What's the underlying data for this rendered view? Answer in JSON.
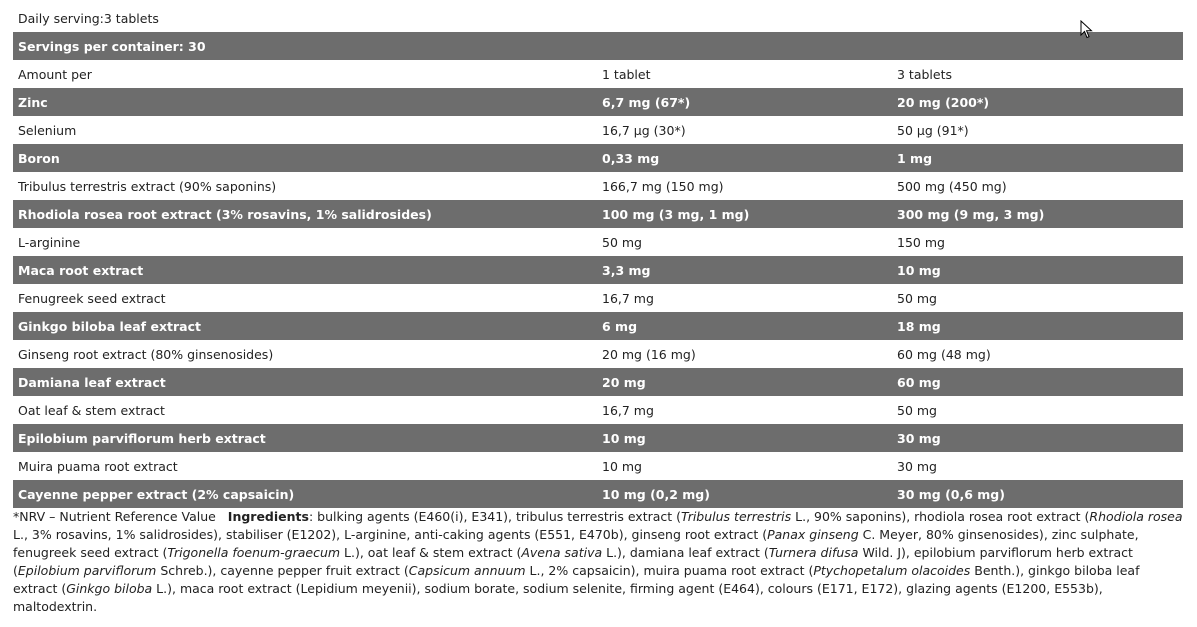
{
  "rows": [
    {
      "cells": [
        "Daily serving:3 tablets",
        "",
        ""
      ],
      "dark": false
    },
    {
      "cells": [
        "Servings per container: 30",
        "",
        ""
      ],
      "dark": true
    },
    {
      "cells": [
        "Amount per",
        "1 tablet",
        "3 tablets"
      ],
      "dark": false
    },
    {
      "cells": [
        "Zinc",
        "6,7 mg (67*)",
        "20 mg (200*)"
      ],
      "dark": true
    },
    {
      "cells": [
        "Selenium",
        "16,7 µg (30*)",
        "50 µg (91*)"
      ],
      "dark": false
    },
    {
      "cells": [
        "Boron",
        "0,33 mg",
        "1 mg"
      ],
      "dark": true
    },
    {
      "cells": [
        "Tribulus terrestris extract (90% saponins)",
        "166,7 mg (150 mg)",
        "500 mg (450 mg)"
      ],
      "dark": false
    },
    {
      "cells": [
        "Rhodiola rosea root extract (3% rosavins, 1% salidrosides)",
        "100 mg (3 mg, 1 mg)",
        "300 mg (9 mg, 3 mg)"
      ],
      "dark": true
    },
    {
      "cells": [
        "L-arginine",
        "50 mg",
        "150 mg"
      ],
      "dark": false
    },
    {
      "cells": [
        "Maca root extract",
        "3,3 mg",
        "10 mg"
      ],
      "dark": true
    },
    {
      "cells": [
        "Fenugreek seed extract",
        "16,7 mg",
        "50 mg"
      ],
      "dark": false
    },
    {
      "cells": [
        "Ginkgo biloba leaf extract",
        "6 mg",
        "18 mg"
      ],
      "dark": true
    },
    {
      "cells": [
        "Ginseng root extract (80% ginsenosides)",
        "20 mg (16 mg)",
        "60 mg (48 mg)"
      ],
      "dark": false
    },
    {
      "cells": [
        "Damiana leaf extract",
        "20 mg",
        "60 mg"
      ],
      "dark": true
    },
    {
      "cells": [
        "Oat leaf & stem extract",
        "16,7 mg",
        "50 mg"
      ],
      "dark": false
    },
    {
      "cells": [
        "Epilobium parviflorum herb extract",
        "10 mg",
        "30 mg"
      ],
      "dark": true
    },
    {
      "cells": [
        "Muira puama root extract",
        "10 mg",
        "30 mg"
      ],
      "dark": false
    },
    {
      "cells": [
        "Cayenne pepper extract (2% capsaicin)",
        "10 mg (0,2 mg)",
        "30 mg (0,6 mg)"
      ],
      "dark": true
    }
  ],
  "footer": {
    "nrv": "*NRV – Nutrient Reference Value",
    "ingredients_label": "Ingredients",
    "segments": [
      {
        "t": ": bulking agents (E460(i), E341), tribulus terrestris extract (",
        "i": false
      },
      {
        "t": "Tribulus terrestris",
        "i": true
      },
      {
        "t": " L., 90% saponins), rhodiola rosea root extract (",
        "i": false
      },
      {
        "t": "Rhodiola rosea",
        "i": true
      },
      {
        "t": " L., 3% rosavins, 1% salidrosides), stabiliser (E1202), L-arginine, anti-caking agents (E551, E470b), ginseng root extract (",
        "i": false
      },
      {
        "t": "Panax ginseng",
        "i": true
      },
      {
        "t": " C. Meyer, 80% ginsenosides), zinc sulphate, fenugreek seed extract (",
        "i": false
      },
      {
        "t": "Trigonella foenum-graecum",
        "i": true
      },
      {
        "t": " L.), oat leaf & stem extract (",
        "i": false
      },
      {
        "t": "Avena sativa",
        "i": true
      },
      {
        "t": " L.), damiana leaf extract (",
        "i": false
      },
      {
        "t": "Turnera difusa",
        "i": true
      },
      {
        "t": " Wild. J), epilobium parviflorum herb extract (",
        "i": false
      },
      {
        "t": "Epilobium parviflorum",
        "i": true
      },
      {
        "t": " Schreb.), cayenne pepper fruit extract (",
        "i": false
      },
      {
        "t": "Capsicum annuum",
        "i": true
      },
      {
        "t": " L., 2% capsaicin), muira puama root extract (",
        "i": false
      },
      {
        "t": "Ptychopetalum olacoides",
        "i": true
      },
      {
        "t": " Benth.), ginkgo biloba leaf extract (",
        "i": false
      },
      {
        "t": "Ginkgo biloba",
        "i": true
      },
      {
        "t": " L.), maca root extract (Lepidium meyenii), sodium borate, sodium selenite, firming agent (E464), colours (E171, E172), glazing agents (E1200, E553b), maltodextrin.",
        "i": false
      }
    ]
  },
  "colors": {
    "dark_row": "#6d6d6d",
    "text": "#222222"
  },
  "icons": {
    "cursor": "mouse-pointer-icon"
  }
}
